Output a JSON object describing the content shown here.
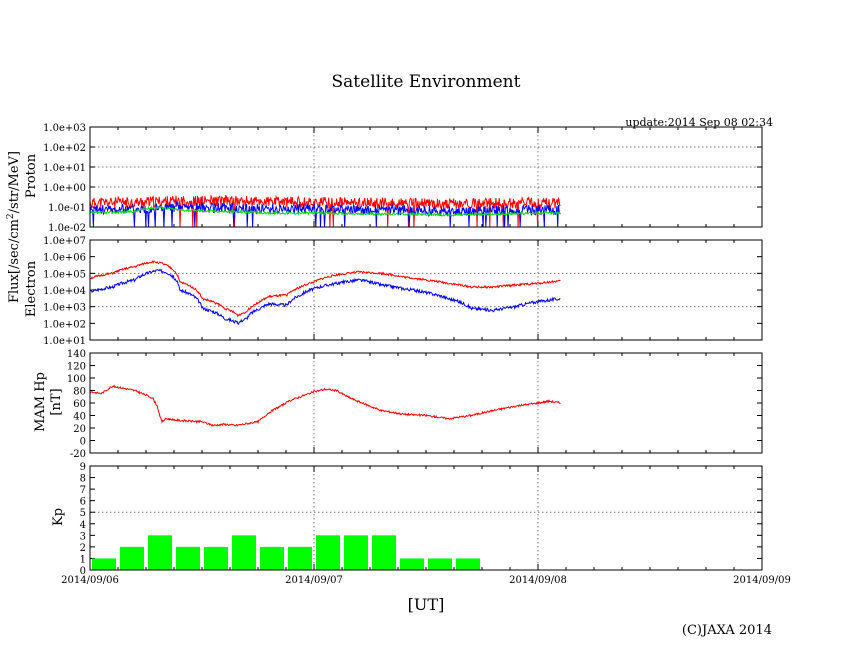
{
  "header": {
    "title": "Satellite Environment",
    "update": "update:2014 Sep 08 02:34"
  },
  "footer": {
    "xlabel": "[UT]",
    "copyright": "(C)JAXA 2014"
  },
  "shared_ylabel_parts": [
    "Flux[/sec/cm",
    "2",
    "/str/MeV]"
  ],
  "x_tick_labels": [
    "2014/09/06",
    "2014/09/07",
    "2014/09/08",
    "2014/09/09"
  ],
  "colors": {
    "proton_high": "#ff0000",
    "proton_mid": "#0000ff",
    "proton_low": "#00dd00",
    "electron_high": "#ff0000",
    "electron_low": "#0000ff",
    "hp": "#ff0000",
    "kp": "#00ff00"
  },
  "chart_data": [
    {
      "type": "line",
      "id": "proton",
      "ylabel": "Proton",
      "yscale": "log",
      "ylim": [
        0.01,
        1000
      ],
      "ytick_labels": [
        "1.0e-02",
        "1.0e-01",
        "1.0e+00",
        "1.0e+01",
        "1.0e+02",
        "1.0e+03"
      ],
      "xlim_days": [
        0,
        3
      ],
      "series": [
        {
          "name": "proton-high",
          "color": "#ff0000",
          "x": [
            0,
            0.2,
            0.4,
            0.6,
            0.8,
            1.0,
            1.2,
            1.4,
            1.6,
            1.8,
            2.0,
            2.1
          ],
          "values": [
            0.16,
            0.17,
            0.2,
            0.2,
            0.18,
            0.17,
            0.16,
            0.15,
            0.14,
            0.15,
            0.16,
            0.16
          ]
        },
        {
          "name": "proton-mid",
          "color": "#0000ff",
          "x": [
            0,
            0.2,
            0.4,
            0.6,
            0.8,
            1.0,
            1.2,
            1.4,
            1.6,
            1.8,
            2.0,
            2.1
          ],
          "values": [
            0.07,
            0.08,
            0.1,
            0.09,
            0.08,
            0.08,
            0.07,
            0.07,
            0.06,
            0.07,
            0.07,
            0.07
          ]
        },
        {
          "name": "proton-low",
          "color": "#00dd00",
          "x": [
            0,
            0.2,
            0.3,
            0.4,
            0.6,
            0.8,
            1.0,
            1.2,
            1.4,
            1.6,
            1.8,
            2.0,
            2.1
          ],
          "values": [
            0.05,
            0.06,
            0.1,
            0.07,
            0.06,
            0.05,
            0.05,
            0.045,
            0.045,
            0.04,
            0.045,
            0.05,
            0.05
          ]
        }
      ]
    },
    {
      "type": "line",
      "id": "electron",
      "ylabel": "Electron",
      "yscale": "log",
      "ylim": [
        10,
        10000000
      ],
      "ytick_labels": [
        "1.0e+01",
        "1.0e+02",
        "1.0e+03",
        "1.0e+04",
        "1.0e+05",
        "1.0e+06",
        "1.0e+07"
      ],
      "xlim_days": [
        0,
        3
      ],
      "series": [
        {
          "name": "electron-high",
          "color": "#ff0000",
          "x": [
            0,
            0.1,
            0.2,
            0.28,
            0.32,
            0.4,
            0.5,
            0.6,
            0.66,
            0.7,
            0.76,
            0.8,
            0.88,
            0.94,
            1.0,
            1.1,
            1.2,
            1.3,
            1.4,
            1.5,
            1.6,
            1.7,
            1.8,
            1.9,
            2.0,
            2.1
          ],
          "values": [
            50000,
            100000,
            250000,
            500000,
            400000,
            30000,
            3000,
            800,
            300,
            500,
            2000,
            4000,
            5000,
            15000,
            30000,
            80000,
            120000,
            100000,
            60000,
            40000,
            25000,
            15000,
            15000,
            20000,
            25000,
            35000
          ]
        },
        {
          "name": "electron-low",
          "color": "#0000ff",
          "x": [
            0,
            0.1,
            0.2,
            0.3,
            0.34,
            0.4,
            0.5,
            0.6,
            0.66,
            0.7,
            0.76,
            0.8,
            0.88,
            0.94,
            1.0,
            1.1,
            1.2,
            1.3,
            1.4,
            1.5,
            1.6,
            1.7,
            1.8,
            1.9,
            2.0,
            2.1
          ],
          "values": [
            8000,
            15000,
            40000,
            150000,
            120000,
            10000,
            800,
            200,
            100,
            200,
            800,
            1500,
            1200,
            5000,
            12000,
            25000,
            40000,
            20000,
            12000,
            7000,
            3000,
            800,
            600,
            1000,
            2000,
            3000
          ]
        }
      ]
    },
    {
      "type": "line",
      "id": "hp",
      "ylabel": "MAM Hp",
      "ylabel2": "[nT]",
      "yscale": "linear",
      "ylim": [
        -20,
        140
      ],
      "ytick_labels": [
        "-20",
        "0",
        "20",
        "40",
        "60",
        "80",
        "100",
        "120",
        "140"
      ],
      "xlim_days": [
        0,
        3
      ],
      "series": [
        {
          "name": "hp",
          "color": "#ff0000",
          "x": [
            0,
            0.05,
            0.1,
            0.2,
            0.28,
            0.3,
            0.32,
            0.34,
            0.4,
            0.5,
            0.55,
            0.6,
            0.65,
            0.7,
            0.75,
            0.8,
            0.9,
            1.0,
            1.05,
            1.1,
            1.15,
            1.2,
            1.3,
            1.4,
            1.5,
            1.6,
            1.7,
            1.8,
            1.9,
            2.0,
            2.05,
            2.1
          ],
          "values": [
            78,
            75,
            87,
            80,
            68,
            55,
            30,
            35,
            32,
            30,
            24,
            26,
            24,
            27,
            30,
            45,
            65,
            78,
            82,
            80,
            70,
            62,
            48,
            42,
            40,
            35,
            40,
            48,
            55,
            60,
            63,
            60
          ]
        }
      ]
    },
    {
      "type": "bar",
      "id": "kp",
      "ylabel": "Kp",
      "ylim": [
        0,
        9
      ],
      "ytick_labels": [
        "0",
        "1",
        "2",
        "3",
        "4",
        "5",
        "6",
        "7",
        "8",
        "9"
      ],
      "xlim_days": [
        0,
        3
      ],
      "bar_width_days": 0.125,
      "x": [
        0,
        0.125,
        0.25,
        0.375,
        0.5,
        0.625,
        0.75,
        0.875,
        1.0,
        1.125,
        1.25,
        1.375,
        1.5,
        1.625,
        1.75
      ],
      "values": [
        1,
        2,
        3,
        2,
        2,
        3,
        2,
        2,
        3,
        3,
        3,
        1,
        1,
        1,
        0
      ]
    }
  ]
}
